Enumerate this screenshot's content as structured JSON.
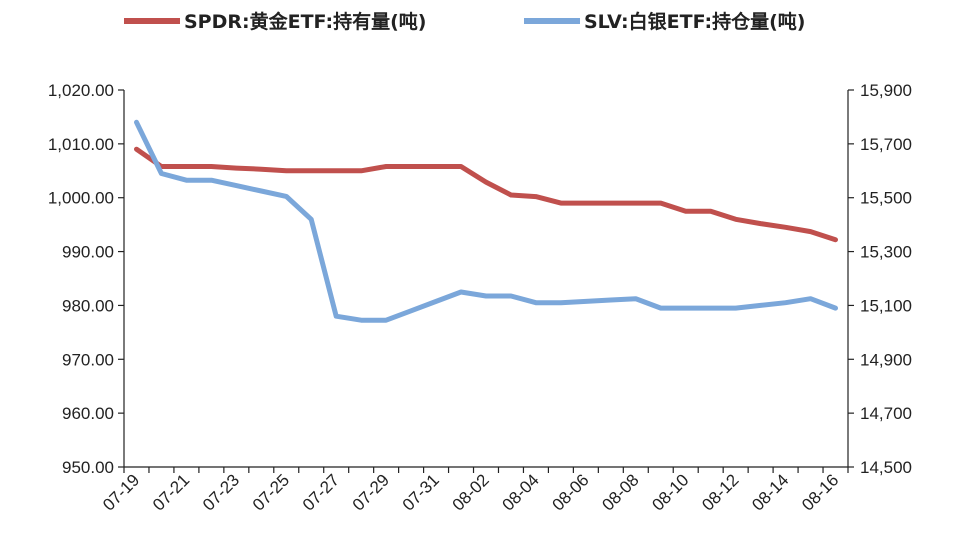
{
  "chart_data": {
    "type": "line",
    "title": "",
    "grid": false,
    "legend_position": "top",
    "x": [
      "07-19",
      "07-20",
      "07-21",
      "07-22",
      "07-23",
      "07-24",
      "07-25",
      "07-26",
      "07-27",
      "07-28",
      "07-29",
      "07-30",
      "07-31",
      "08-01",
      "08-02",
      "08-03",
      "08-04",
      "08-05",
      "08-06",
      "08-07",
      "08-08",
      "08-09",
      "08-10",
      "08-11",
      "08-12",
      "08-13",
      "08-14",
      "08-15",
      "08-16"
    ],
    "x_tick_labels": [
      "07-19",
      "07-21",
      "07-23",
      "07-25",
      "07-27",
      "07-29",
      "07-31",
      "08-02",
      "08-04",
      "08-06",
      "08-08",
      "08-10",
      "08-12",
      "08-14",
      "08-16"
    ],
    "y_left": {
      "range": [
        950,
        1020
      ],
      "ticks": [
        950,
        960,
        970,
        980,
        990,
        1000,
        1010,
        1020
      ],
      "tick_labels": [
        "950.00",
        "960.00",
        "970.00",
        "980.00",
        "990.00",
        "1,000.00",
        "1,010.00",
        "1,020.00"
      ]
    },
    "y_right": {
      "range": [
        14500,
        15900
      ],
      "ticks": [
        14500,
        14700,
        14900,
        15100,
        15300,
        15500,
        15700,
        15900
      ],
      "tick_labels": [
        "14,500",
        "14,700",
        "14,900",
        "15,100",
        "15,300",
        "15,500",
        "15,700",
        "15,900"
      ]
    },
    "series": [
      {
        "name": "SPDR:黄金ETF:持有量(吨)",
        "axis": "left",
        "color": "#C0504D",
        "values": [
          1009.0,
          1005.8,
          1005.8,
          1005.8,
          1005.5,
          1005.3,
          1005.0,
          1005.0,
          1005.0,
          1005.0,
          1005.8,
          1005.8,
          1005.8,
          1005.8,
          1002.9,
          1000.5,
          1000.2,
          999.0,
          999.0,
          999.0,
          999.0,
          999.0,
          997.5,
          997.5,
          996.0,
          995.2,
          994.5,
          993.7,
          992.2
        ]
      },
      {
        "name": "SLV:白银ETF:持仓量(吨)",
        "axis": "right",
        "color": "#7BA7DA",
        "values": [
          15780,
          15590,
          15565,
          15565,
          15545,
          15525,
          15505,
          15420,
          15060,
          15045,
          15045,
          15080,
          15115,
          15150,
          15135,
          15135,
          15110,
          15110,
          15115,
          15120,
          15125,
          15090,
          15090,
          15090,
          15090,
          15100,
          15110,
          15125,
          15090
        ]
      }
    ]
  }
}
